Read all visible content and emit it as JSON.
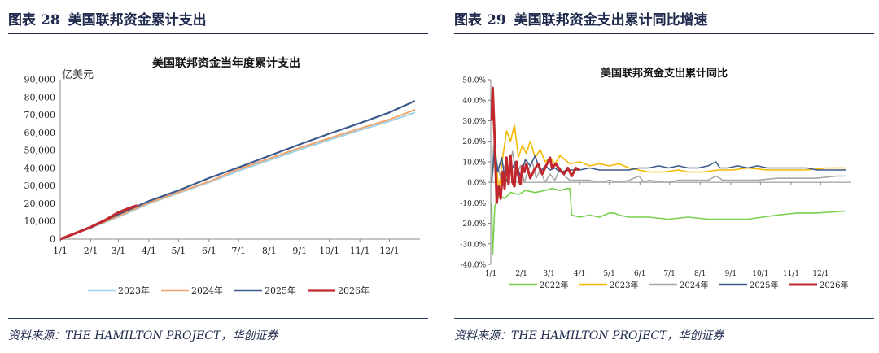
{
  "left_panel": {
    "fig_label": "图表",
    "fig_number": "28",
    "fig_title": "美国联邦资金累计支出",
    "source": "资料来源：THE HAMILTON PROJECT，华创证券"
  },
  "right_panel": {
    "fig_label": "图表",
    "fig_number": "29",
    "fig_title": "美国联邦资金支出累计同比增速",
    "source": "资料来源：THE HAMILTON PROJECT，华创证券"
  },
  "chart_data": [
    {
      "type": "line",
      "title": "美国联邦资金当年度累计支出",
      "unit_label": "亿美元",
      "ylim": [
        0,
        90000
      ],
      "yticks": [
        "0",
        "10,000",
        "20,000",
        "30,000",
        "40,000",
        "50,000",
        "60,000",
        "70,000",
        "80,000",
        "90,000"
      ],
      "xlim": [
        0,
        365
      ],
      "xticks": [
        {
          "label": "1/1",
          "x": 0
        },
        {
          "label": "2/1",
          "x": 31
        },
        {
          "label": "3/1",
          "x": 59
        },
        {
          "label": "4/1",
          "x": 90
        },
        {
          "label": "5/1",
          "x": 120
        },
        {
          "label": "6/1",
          "x": 151
        },
        {
          "label": "7/1",
          "x": 181
        },
        {
          "label": "8/1",
          "x": 212
        },
        {
          "label": "9/1",
          "x": 243
        },
        {
          "label": "10/1",
          "x": 273
        },
        {
          "label": "11/1",
          "x": 304
        },
        {
          "label": "12/1",
          "x": 334
        }
      ],
      "legend_position": "bottom",
      "series": [
        {
          "name": "2023年",
          "color": "#9fd3ea",
          "width": 2,
          "points": [
            [
              0,
              0
            ],
            [
              31,
              6300
            ],
            [
              59,
              12500
            ],
            [
              90,
              20000
            ],
            [
              120,
              26000
            ],
            [
              151,
              32000
            ],
            [
              181,
              38500
            ],
            [
              212,
              44500
            ],
            [
              243,
              50500
            ],
            [
              273,
              56000
            ],
            [
              304,
              61500
            ],
            [
              334,
              66500
            ],
            [
              360,
              71500
            ]
          ]
        },
        {
          "name": "2024年",
          "color": "#f2a46b",
          "width": 2,
          "points": [
            [
              0,
              0
            ],
            [
              31,
              6600
            ],
            [
              59,
              13000
            ],
            [
              90,
              20500
            ],
            [
              120,
              26500
            ],
            [
              151,
              32500
            ],
            [
              181,
              39500
            ],
            [
              212,
              45500
            ],
            [
              243,
              51500
            ],
            [
              273,
              57000
            ],
            [
              304,
              62500
            ],
            [
              334,
              67500
            ],
            [
              360,
              73000
            ]
          ]
        },
        {
          "name": "2025年",
          "color": "#3d5a8c",
          "width": 2.2,
          "points": [
            [
              0,
              0
            ],
            [
              31,
              7000
            ],
            [
              59,
              14000
            ],
            [
              90,
              21500
            ],
            [
              120,
              27500
            ],
            [
              151,
              34500
            ],
            [
              181,
              40500
            ],
            [
              212,
              47000
            ],
            [
              243,
              53500
            ],
            [
              273,
              59500
            ],
            [
              304,
              65500
            ],
            [
              334,
              71500
            ],
            [
              360,
              78000
            ]
          ]
        },
        {
          "name": "2026年",
          "color": "#c0282d",
          "width": 3.2,
          "points": [
            [
              0,
              0
            ],
            [
              15,
              3200
            ],
            [
              31,
              6800
            ],
            [
              45,
              10500
            ],
            [
              59,
              15000
            ],
            [
              70,
              17500
            ],
            [
              78,
              19000
            ]
          ]
        }
      ]
    },
    {
      "type": "line",
      "title": "美国联邦资金支出累计同比",
      "ylim": [
        -40,
        50
      ],
      "yticks": [
        "-40.0%",
        "-30.0%",
        "-20.0%",
        "-10.0%",
        "0.0%",
        "10.0%",
        "20.0%",
        "30.0%",
        "40.0%",
        "50.0%"
      ],
      "xlim": [
        0,
        365
      ],
      "xticks": [
        {
          "label": "1/1",
          "x": 0
        },
        {
          "label": "2/1",
          "x": 31
        },
        {
          "label": "3/1",
          "x": 59
        },
        {
          "label": "4/1",
          "x": 90
        },
        {
          "label": "5/1",
          "x": 120
        },
        {
          "label": "6/1",
          "x": 151
        },
        {
          "label": "7/1",
          "x": 181
        },
        {
          "label": "8/1",
          "x": 212
        },
        {
          "label": "9/1",
          "x": 243
        },
        {
          "label": "10/1",
          "x": 273
        },
        {
          "label": "11/1",
          "x": 304
        },
        {
          "label": "12/1",
          "x": 334
        }
      ],
      "legend_position": "bottom",
      "series": [
        {
          "name": "2022年",
          "color": "#7ccf4f",
          "width": 1.6,
          "points": [
            [
              1,
              -10
            ],
            [
              2,
              -35
            ],
            [
              4,
              -12
            ],
            [
              8,
              -6
            ],
            [
              14,
              -8
            ],
            [
              20,
              -5
            ],
            [
              28,
              -6
            ],
            [
              35,
              -4
            ],
            [
              45,
              -5
            ],
            [
              55,
              -4
            ],
            [
              62,
              -3
            ],
            [
              70,
              -4
            ],
            [
              78,
              -3
            ],
            [
              80,
              -3
            ],
            [
              82,
              -16
            ],
            [
              90,
              -17
            ],
            [
              100,
              -16
            ],
            [
              110,
              -17
            ],
            [
              120,
              -15
            ],
            [
              125,
              -15
            ],
            [
              130,
              -16
            ],
            [
              140,
              -17
            ],
            [
              160,
              -17
            ],
            [
              180,
              -18
            ],
            [
              200,
              -17
            ],
            [
              220,
              -18
            ],
            [
              240,
              -18
            ],
            [
              260,
              -18
            ],
            [
              275,
              -17
            ],
            [
              290,
              -16
            ],
            [
              310,
              -15
            ],
            [
              330,
              -15
            ],
            [
              360,
              -14
            ]
          ]
        },
        {
          "name": "2023年",
          "color": "#f5b800",
          "width": 1.6,
          "points": [
            [
              1,
              2
            ],
            [
              5,
              15
            ],
            [
              8,
              -5
            ],
            [
              12,
              12
            ],
            [
              16,
              25
            ],
            [
              20,
              20
            ],
            [
              24,
              28
            ],
            [
              28,
              12
            ],
            [
              32,
              18
            ],
            [
              36,
              14
            ],
            [
              40,
              20
            ],
            [
              45,
              12
            ],
            [
              50,
              16
            ],
            [
              55,
              10
            ],
            [
              60,
              12
            ],
            [
              65,
              9
            ],
            [
              70,
              13
            ],
            [
              80,
              9
            ],
            [
              90,
              10
            ],
            [
              100,
              8
            ],
            [
              110,
              9
            ],
            [
              120,
              8
            ],
            [
              130,
              9
            ],
            [
              140,
              7
            ],
            [
              150,
              6
            ],
            [
              160,
              5
            ],
            [
              175,
              5
            ],
            [
              190,
              6
            ],
            [
              200,
              5
            ],
            [
              215,
              5
            ],
            [
              230,
              6
            ],
            [
              245,
              6
            ],
            [
              260,
              7
            ],
            [
              280,
              6
            ],
            [
              300,
              6
            ],
            [
              320,
              6
            ],
            [
              340,
              7
            ],
            [
              360,
              7
            ]
          ]
        },
        {
          "name": "2024年",
          "color": "#a8a8a8",
          "width": 1.6,
          "points": [
            [
              1,
              0
            ],
            [
              3,
              18
            ],
            [
              6,
              10
            ],
            [
              10,
              2
            ],
            [
              14,
              8
            ],
            [
              18,
              5
            ],
            [
              22,
              15
            ],
            [
              26,
              3
            ],
            [
              30,
              8
            ],
            [
              34,
              0
            ],
            [
              38,
              6
            ],
            [
              42,
              10
            ],
            [
              46,
              2
            ],
            [
              50,
              6
            ],
            [
              55,
              0
            ],
            [
              60,
              4
            ],
            [
              65,
              1
            ],
            [
              70,
              7
            ],
            [
              75,
              3
            ],
            [
              80,
              1
            ],
            [
              90,
              1
            ],
            [
              100,
              1
            ],
            [
              110,
              0
            ],
            [
              120,
              1
            ],
            [
              130,
              0
            ],
            [
              140,
              1
            ],
            [
              150,
              3
            ],
            [
              155,
              0
            ],
            [
              160,
              1
            ],
            [
              175,
              0
            ],
            [
              180,
              0
            ],
            [
              190,
              1
            ],
            [
              210,
              1
            ],
            [
              220,
              1
            ],
            [
              228,
              3
            ],
            [
              235,
              1
            ],
            [
              250,
              1
            ],
            [
              270,
              1
            ],
            [
              290,
              2
            ],
            [
              310,
              2
            ],
            [
              330,
              2
            ],
            [
              350,
              3
            ],
            [
              360,
              3
            ]
          ]
        },
        {
          "name": "2025年",
          "color": "#3d5a8c",
          "width": 1.6,
          "points": [
            [
              1,
              0
            ],
            [
              4,
              17
            ],
            [
              7,
              5
            ],
            [
              11,
              12
            ],
            [
              15,
              0
            ],
            [
              20,
              5
            ],
            [
              25,
              10
            ],
            [
              30,
              3
            ],
            [
              35,
              11
            ],
            [
              40,
              8
            ],
            [
              45,
              13
            ],
            [
              50,
              5
            ],
            [
              55,
              8
            ],
            [
              60,
              6
            ],
            [
              65,
              7
            ],
            [
              70,
              5
            ],
            [
              80,
              6
            ],
            [
              90,
              6
            ],
            [
              100,
              7
            ],
            [
              110,
              6
            ],
            [
              120,
              6
            ],
            [
              130,
              6
            ],
            [
              140,
              6
            ],
            [
              150,
              7
            ],
            [
              160,
              7
            ],
            [
              170,
              8
            ],
            [
              180,
              7
            ],
            [
              190,
              8
            ],
            [
              200,
              7
            ],
            [
              210,
              7
            ],
            [
              220,
              8
            ],
            [
              228,
              10
            ],
            [
              232,
              7
            ],
            [
              240,
              7
            ],
            [
              250,
              8
            ],
            [
              260,
              7
            ],
            [
              270,
              8
            ],
            [
              280,
              7
            ],
            [
              290,
              7
            ],
            [
              300,
              7
            ],
            [
              310,
              7
            ],
            [
              320,
              7
            ],
            [
              330,
              6
            ],
            [
              340,
              6
            ],
            [
              350,
              6
            ],
            [
              360,
              6
            ]
          ]
        },
        {
          "name": "2026年",
          "color": "#c0282d",
          "width": 3,
          "points": [
            [
              1,
              30
            ],
            [
              2,
              46
            ],
            [
              4,
              20
            ],
            [
              6,
              -10
            ],
            [
              8,
              -2
            ],
            [
              10,
              -8
            ],
            [
              12,
              5
            ],
            [
              14,
              -3
            ],
            [
              16,
              12
            ],
            [
              18,
              -1
            ],
            [
              20,
              13
            ],
            [
              22,
              0
            ],
            [
              24,
              -2
            ],
            [
              26,
              10
            ],
            [
              28,
              3
            ],
            [
              30,
              -1
            ],
            [
              32,
              8
            ],
            [
              34,
              5
            ],
            [
              36,
              9
            ],
            [
              40,
              2
            ],
            [
              44,
              6
            ],
            [
              48,
              9
            ],
            [
              52,
              4
            ],
            [
              56,
              8
            ],
            [
              60,
              12
            ],
            [
              62,
              7
            ],
            [
              66,
              9
            ],
            [
              70,
              6
            ],
            [
              74,
              4
            ],
            [
              78,
              7
            ],
            [
              82,
              3
            ],
            [
              86,
              7
            ],
            [
              90,
              6
            ]
          ]
        }
      ]
    }
  ]
}
